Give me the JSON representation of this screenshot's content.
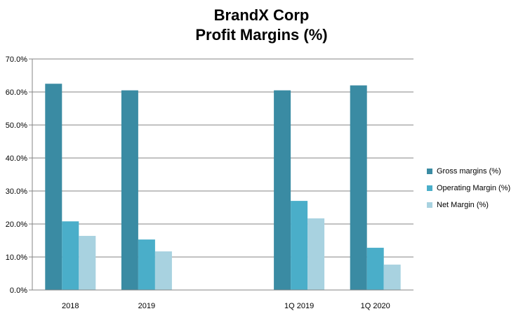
{
  "colors": {
    "gross": "#3a8ba3",
    "operating": "#4aaec9",
    "net": "#a8d2e0",
    "grid": "#868686",
    "axis": "#868686"
  },
  "chart_data": {
    "type": "bar",
    "title": "BrandX Corp",
    "subtitle": "Profit Margins (%)",
    "categories": [
      "2018",
      "2019",
      "",
      "1Q 2019",
      "1Q 2020"
    ],
    "series": [
      {
        "name": "Gross margins (%)",
        "values": [
          62.5,
          60.5,
          null,
          60.5,
          62.0
        ]
      },
      {
        "name": "Operating Margin  (%)",
        "values": [
          20.8,
          15.3,
          null,
          27.0,
          12.8
        ]
      },
      {
        "name": "Net Margin  (%)",
        "values": [
          16.4,
          11.7,
          null,
          21.7,
          7.7
        ]
      }
    ],
    "y_ticks": [
      "0.0%",
      "10.0%",
      "20.0%",
      "30.0%",
      "40.0%",
      "50.0%",
      "60.0%",
      "70.0%"
    ],
    "ylim": [
      0,
      70
    ],
    "grid": true,
    "legend_position": "right"
  }
}
